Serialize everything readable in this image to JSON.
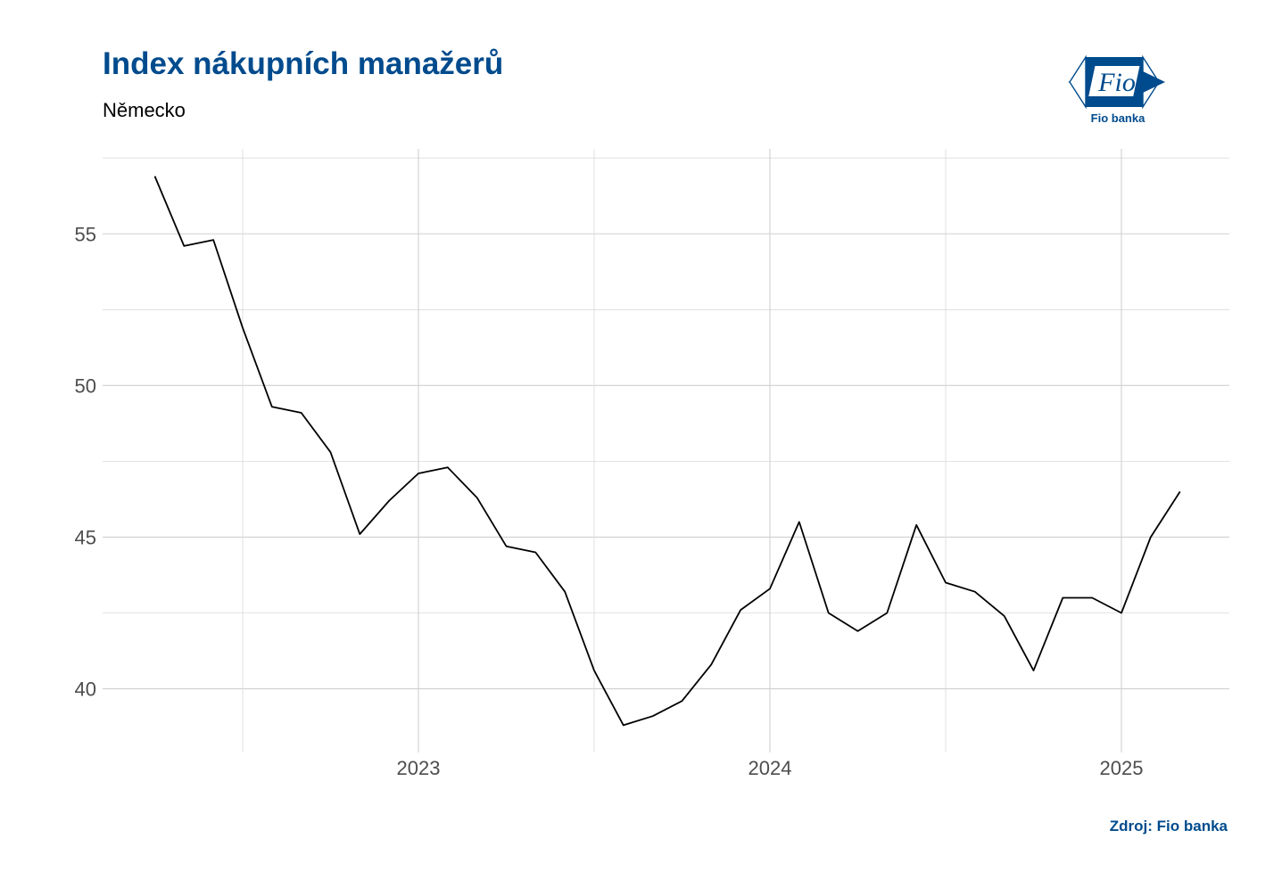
{
  "header": {
    "title": "Index nákupních manažerů",
    "subtitle": "Německo"
  },
  "logo": {
    "mark_text": "Fio",
    "caption": "Fio banka",
    "color": "#004b8d"
  },
  "footer": {
    "source": "Zdroj: Fio banka"
  },
  "chart_data": {
    "type": "line",
    "title": "Index nákupních manažerů",
    "subtitle": "Německo",
    "xlabel": "",
    "ylabel": "",
    "x_ticks": [
      "2023",
      "2024",
      "2025"
    ],
    "y_ticks": [
      40,
      45,
      50,
      55
    ],
    "ylim": [
      38,
      57.5
    ],
    "grid": true,
    "line_color": "#000000",
    "series": [
      {
        "x": [
          "2022-04",
          "2022-05",
          "2022-06",
          "2022-07",
          "2022-08",
          "2022-09",
          "2022-10",
          "2022-11",
          "2022-12",
          "2023-01",
          "2023-02",
          "2023-03",
          "2023-04",
          "2023-05",
          "2023-06",
          "2023-07",
          "2023-08",
          "2023-09",
          "2023-10",
          "2023-11",
          "2023-12",
          "2024-01",
          "2024-02",
          "2024-03",
          "2024-04",
          "2024-05",
          "2024-06",
          "2024-07",
          "2024-08",
          "2024-09",
          "2024-10",
          "2024-11",
          "2024-12",
          "2025-01",
          "2025-02",
          "2025-03"
        ],
        "values": [
          56.9,
          54.6,
          54.8,
          51.9,
          49.3,
          49.1,
          47.8,
          45.1,
          46.2,
          47.1,
          47.3,
          46.3,
          44.7,
          44.5,
          43.2,
          40.6,
          38.8,
          39.1,
          39.6,
          40.8,
          42.6,
          43.3,
          45.5,
          42.5,
          41.9,
          42.5,
          45.4,
          43.5,
          43.2,
          42.4,
          40.6,
          43.0,
          43.0,
          42.5,
          45.0,
          46.5
        ]
      }
    ]
  }
}
